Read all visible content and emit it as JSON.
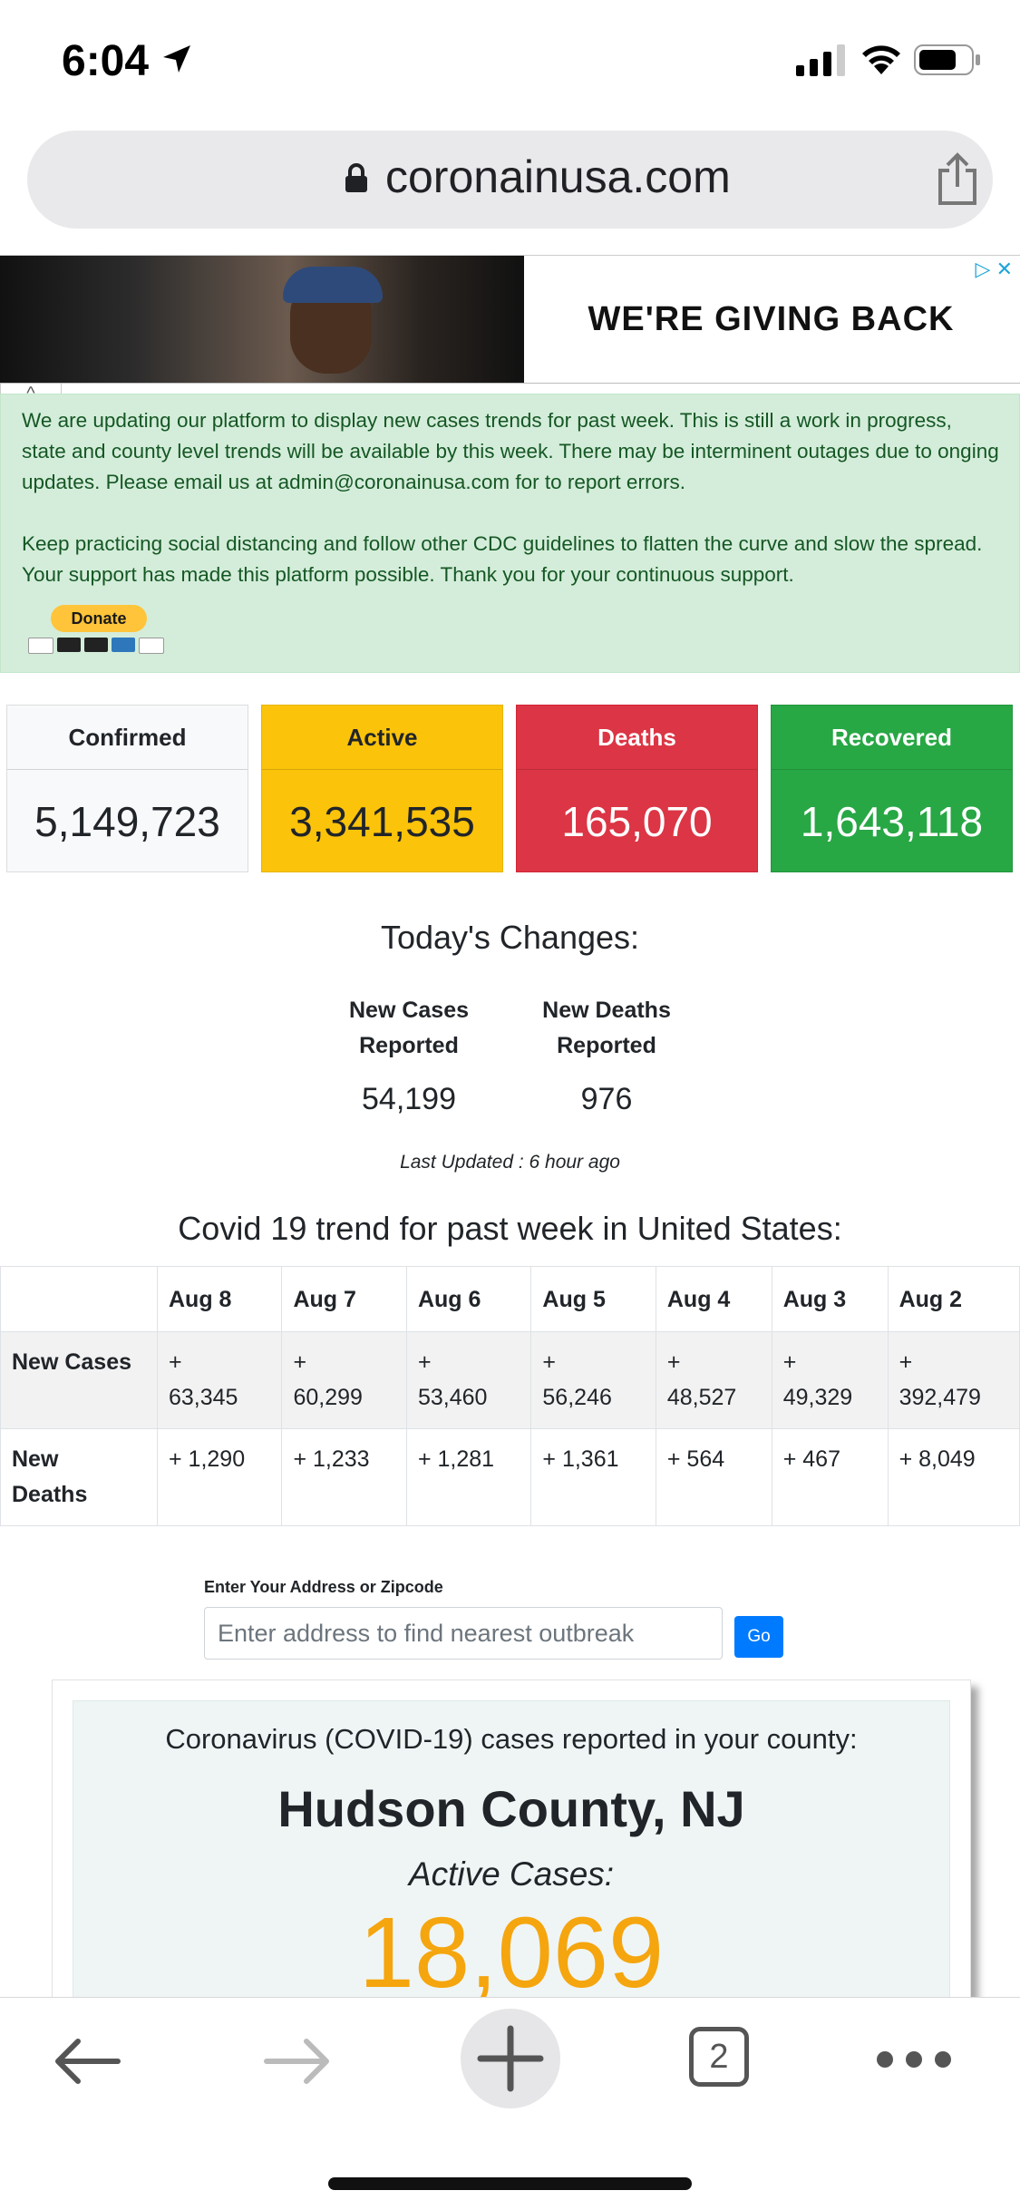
{
  "status_bar": {
    "time": "6:04"
  },
  "browser": {
    "url": "coronainusa.com"
  },
  "ad": {
    "headline": "WE'RE GIVING BACK"
  },
  "notice": {
    "paragraph1": "We are updating our platform to display new cases trends for past week. This is still a work in progress, state and county level trends will be available by this week. There may be interminent outages due to onging updates. Please email us at admin@coronainusa.com for to report errors.",
    "paragraph2": "Keep practicing social distancing and follow other CDC guidelines to flatten the curve and slow the spread. Your support has made this platform possible. Thank you for your continuous support.",
    "donate_label": "Donate"
  },
  "stats": {
    "confirmed": {
      "label": "Confirmed",
      "value": "5,149,723",
      "color": "#f8f9fa"
    },
    "active": {
      "label": "Active",
      "value": "3,341,535",
      "color": "#fbc30a"
    },
    "deaths": {
      "label": "Deaths",
      "value": "165,070",
      "color": "#dc3545"
    },
    "recovered": {
      "label": "Recovered",
      "value": "1,643,118",
      "color": "#28a745"
    }
  },
  "today": {
    "title": "Today's Changes:",
    "new_cases_label_1": "New Cases",
    "new_cases_label_2": "Reported",
    "new_cases_value": "54,199",
    "new_deaths_label_1": "New Deaths",
    "new_deaths_label_2": "Reported",
    "new_deaths_value": "976",
    "last_updated": "Last Updated : 6 hour ago"
  },
  "trend": {
    "title": "Covid 19 trend for past week in United States:",
    "dates": [
      "Aug 8",
      "Aug 7",
      "Aug 6",
      "Aug 5",
      "Aug 4",
      "Aug 3",
      "Aug 2"
    ],
    "new_cases_label": "New Cases",
    "new_cases": [
      "63,345",
      "60,299",
      "53,460",
      "56,246",
      "48,527",
      "49,329",
      "392,479"
    ],
    "new_deaths_label_1": "New",
    "new_deaths_label_2": "Deaths",
    "new_deaths": [
      "+ 1,290",
      "+ 1,233",
      "+ 1,281",
      "+ 1,361",
      "+ 564",
      "+ 467",
      "+ 8,049"
    ]
  },
  "address": {
    "label": "Enter Your Address or Zipcode",
    "placeholder": "Enter address to find nearest outbreak",
    "go_label": "Go"
  },
  "county": {
    "subtitle": "Coronavirus (COVID-19) cases reported in your county:",
    "name": "Hudson County, NJ",
    "active_label": "Active Cases:",
    "active_value": "18,069"
  },
  "toolbar": {
    "tab_count": "2"
  }
}
